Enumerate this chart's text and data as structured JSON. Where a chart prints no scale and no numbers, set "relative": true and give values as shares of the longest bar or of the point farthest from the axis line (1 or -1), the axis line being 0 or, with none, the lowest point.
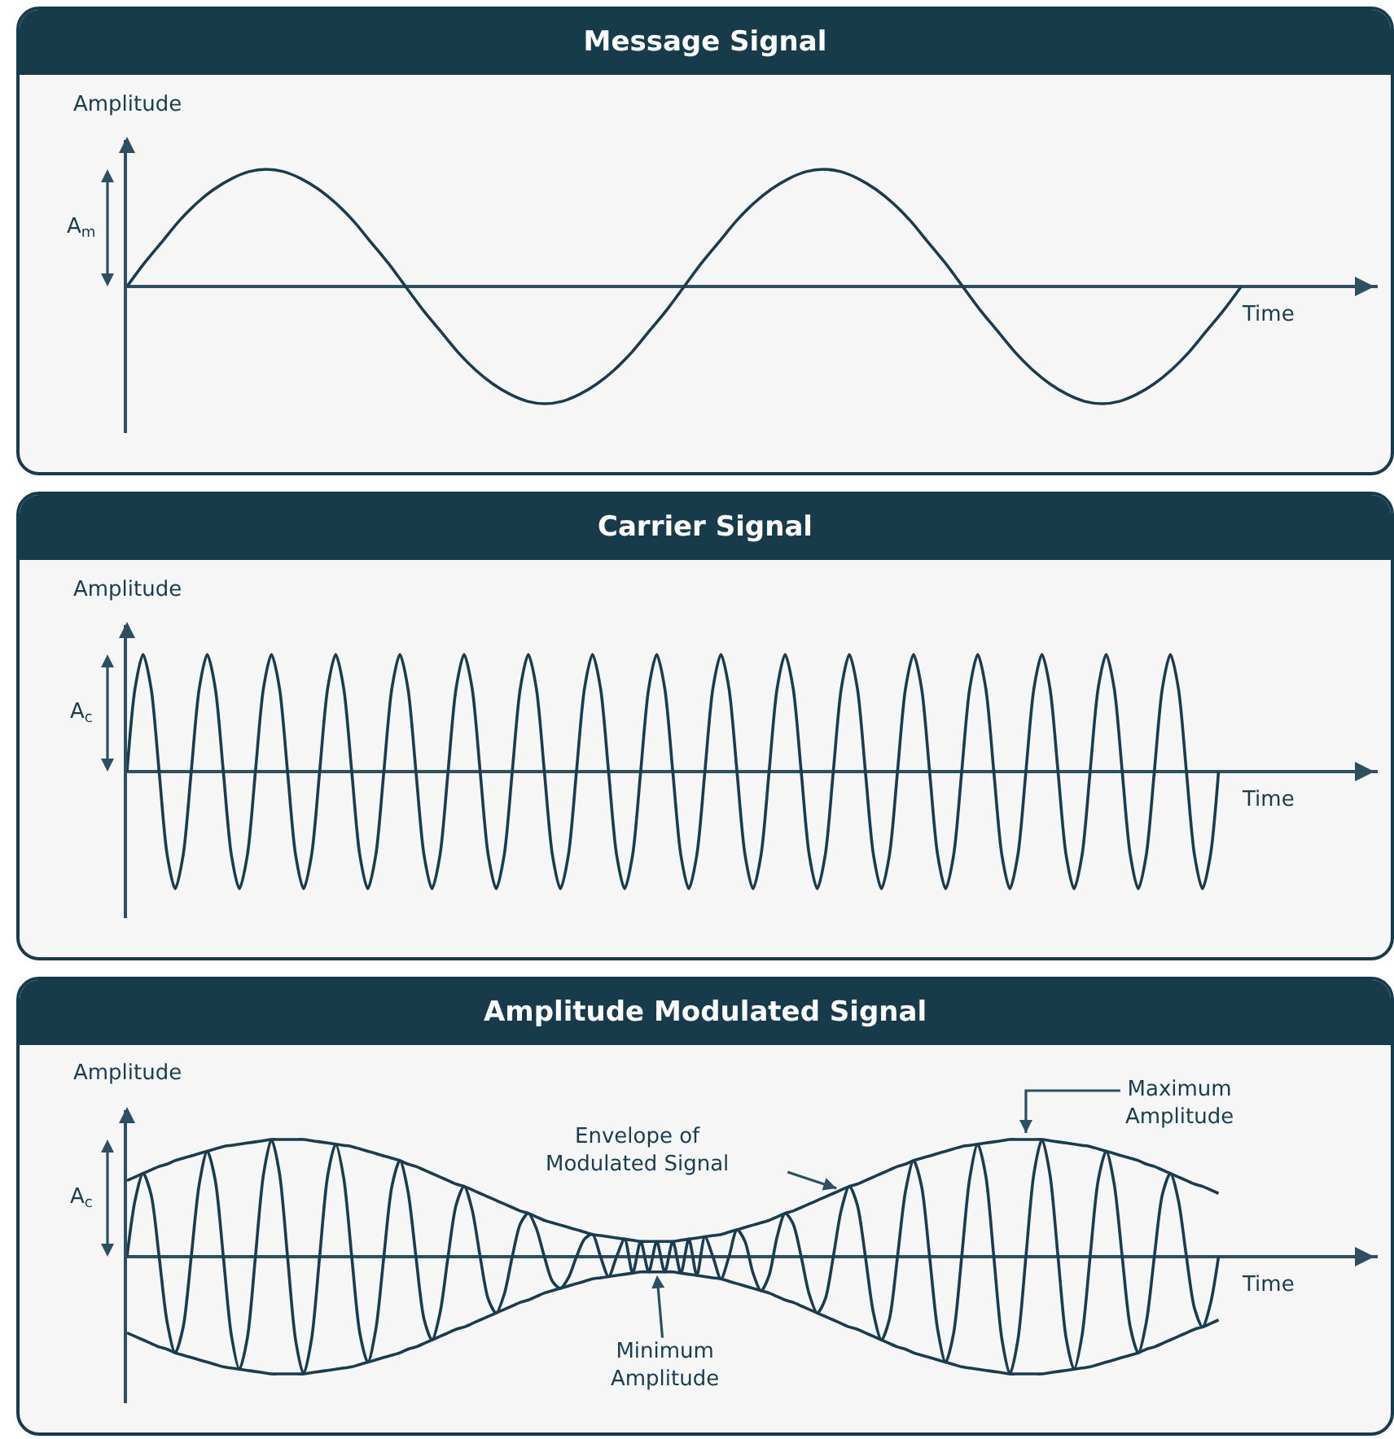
{
  "chart_data": [
    {
      "type": "line",
      "title": "Message Signal",
      "xlabel": "Time",
      "ylabel": "Amplitude",
      "relative": true,
      "annotations": [
        "A$_{m}$"
      ],
      "categories": [
        null,
        null,
        null,
        null,
        null,
        null,
        null,
        null,
        null,
        null,
        null,
        null,
        null,
        null,
        null,
        null,
        null,
        null,
        null,
        null,
        null,
        null,
        null,
        null,
        null,
        null,
        null,
        null,
        null,
        null,
        null,
        null,
        null,
        null,
        null,
        null,
        null,
        null,
        null,
        null,
        null,
        null,
        null,
        null,
        null,
        null,
        null,
        null,
        null,
        null,
        null,
        null,
        null,
        null,
        null,
        null,
        null,
        null,
        null,
        null,
        null,
        null,
        null,
        null,
        null
      ],
      "series": [
        {
          "color": "#1b3c4e",
          "values": [
            0,
            0.2,
            0.38,
            0.56,
            0.71,
            0.83,
            0.92,
            0.98,
            1,
            0.98,
            0.92,
            0.83,
            0.71,
            0.56,
            0.38,
            0.2,
            0,
            -0.2,
            -0.38,
            -0.56,
            -0.71,
            -0.83,
            -0.92,
            -0.98,
            -1,
            -0.98,
            -0.92,
            -0.83,
            -0.71,
            -0.56,
            -0.38,
            -0.2,
            0,
            0.2,
            0.38,
            0.56,
            0.71,
            0.83,
            0.92,
            0.98,
            1,
            0.98,
            0.92,
            0.83,
            0.71,
            0.56,
            0.38,
            0.2,
            0,
            -0.2,
            -0.38,
            -0.56,
            -0.71,
            -0.83,
            -0.92,
            -0.98,
            -1,
            -0.98,
            -0.92,
            -0.83,
            -0.71,
            -0.56,
            -0.38,
            -0.2,
            0
          ]
        }
      ]
    },
    {
      "type": "line",
      "title": "Carrier Signal",
      "xlabel": "Time",
      "ylabel": "Amplitude",
      "relative": true,
      "annotations": [
        "A$_{c}$"
      ],
      "categories": [
        null,
        null,
        null,
        null,
        null,
        null,
        null,
        null,
        null,
        null,
        null,
        null,
        null,
        null,
        null,
        null,
        null,
        null,
        null,
        null,
        null,
        null,
        null,
        null,
        null,
        null,
        null,
        null,
        null,
        null,
        null,
        null,
        null,
        null,
        null,
        null,
        null,
        null,
        null,
        null,
        null,
        null,
        null,
        null,
        null,
        null,
        null,
        null,
        null,
        null,
        null,
        null,
        null,
        null,
        null,
        null,
        null,
        null,
        null,
        null,
        null,
        null,
        null,
        null,
        null,
        null,
        null,
        null,
        null,
        null,
        null,
        null,
        null,
        null,
        null,
        null,
        null,
        null,
        null,
        null,
        null,
        null,
        null,
        null,
        null,
        null,
        null,
        null,
        null,
        null,
        null,
        null,
        null,
        null,
        null,
        null,
        null,
        null,
        null,
        null,
        null,
        null,
        null,
        null,
        null,
        null,
        null,
        null,
        null,
        null,
        null,
        null,
        null,
        null,
        null,
        null,
        null,
        null,
        null,
        null,
        null,
        null,
        null,
        null,
        null,
        null,
        null,
        null,
        null,
        null,
        null,
        null,
        null,
        null,
        null,
        null,
        null
      ],
      "series": [
        {
          "color": "#1b3c4e",
          "values": [
            0,
            0.71,
            1,
            0.71,
            0,
            -0.71,
            -1,
            -0.71,
            0,
            0.71,
            1,
            0.71,
            0,
            -0.71,
            -1,
            -0.71,
            0,
            0.71,
            1,
            0.71,
            0,
            -0.71,
            -1,
            -0.71,
            0,
            0.71,
            1,
            0.71,
            0,
            -0.71,
            -1,
            -0.71,
            0,
            0.71,
            1,
            0.71,
            0,
            -0.71,
            -1,
            -0.71,
            0,
            0.71,
            1,
            0.71,
            0,
            -0.71,
            -1,
            -0.71,
            0,
            0.71,
            1,
            0.71,
            0,
            -0.71,
            -1,
            -0.71,
            0,
            0.71,
            1,
            0.71,
            0,
            -0.71,
            -1,
            -0.71,
            0,
            0.71,
            1,
            0.71,
            0,
            -0.71,
            -1,
            -0.71,
            0,
            0.71,
            1,
            0.71,
            0,
            -0.71,
            -1,
            -0.71,
            0,
            0.71,
            1,
            0.71,
            0,
            -0.71,
            -1,
            -0.71,
            0,
            0.71,
            1,
            0.71,
            0,
            -0.71,
            -1,
            -0.71,
            0,
            0.71,
            1,
            0.71,
            0,
            -0.71,
            -1,
            -0.71,
            0,
            0.71,
            1,
            0.71,
            0,
            -0.71,
            -1,
            -0.71,
            0,
            0.71,
            1,
            0.71,
            0,
            -0.71,
            -1,
            -0.71,
            0,
            0.71,
            1,
            0.71,
            0,
            -0.71,
            -1,
            -0.71,
            0,
            0.71,
            1,
            0.71,
            0,
            -0.71,
            -1,
            -0.71,
            0
          ]
        }
      ]
    },
    {
      "type": "line",
      "title": "Amplitude Modulated Signal",
      "xlabel": "Time",
      "ylabel": "Amplitude",
      "relative": true,
      "annotations": [
        "A$_{c}$",
        "Envelope of\nModulated Signal",
        "Maximum\nAmplitude",
        {
          "text": "Minimum\nAmplitude",
          "y": -0.13
        }
      ],
      "categories": [
        null,
        null,
        null,
        null,
        null,
        null,
        null,
        null,
        null,
        null,
        null,
        null,
        null,
        null,
        null,
        null,
        null,
        null,
        null,
        null,
        null,
        null,
        null,
        null,
        null,
        null,
        null,
        null,
        null,
        null,
        null,
        null,
        null,
        null,
        null,
        null,
        null,
        null,
        null,
        null,
        null,
        null,
        null,
        null,
        null,
        null,
        null,
        null,
        null,
        null,
        null,
        null,
        null,
        null,
        null,
        null,
        null,
        null,
        null,
        null,
        null,
        null,
        null,
        null,
        null,
        null,
        null,
        null,
        null,
        null,
        null,
        null,
        null,
        null,
        null,
        null,
        null,
        null,
        null,
        null,
        null,
        null,
        null,
        null,
        null,
        null,
        null,
        null,
        null,
        null,
        null,
        null,
        null,
        null,
        null,
        null,
        null,
        null,
        null,
        null,
        null,
        null,
        null,
        null,
        null,
        null,
        null,
        null,
        null,
        null,
        null,
        null,
        null,
        null,
        null,
        null,
        null,
        null,
        null,
        null,
        null,
        null,
        null,
        null,
        null,
        null,
        null,
        null,
        null,
        null,
        null,
        null,
        null,
        null,
        null,
        null,
        null
      ],
      "series": [
        {
          "color": "#1b3c4e",
          "values": [
            0,
            0.48,
            0.71,
            0.53,
            0,
            -0.56,
            -0.82,
            -0.6,
            0,
            0.62,
            0.9,
            0.65,
            0,
            -0.67,
            -0.96,
            -0.69,
            0,
            0.7,
            1,
            0.71,
            0,
            -0.71,
            -1,
            -0.7,
            0,
            0.69,
            0.96,
            0.67,
            0,
            -0.65,
            -0.9,
            -0.62,
            0,
            0.6,
            0.82,
            0.56,
            0,
            -0.53,
            -0.71,
            -0.48,
            0,
            0.44,
            0.6,
            0.4,
            0,
            -0.36,
            -0.48,
            -0.32,
            0,
            0.28,
            0.37,
            0.24,
            0,
            -0.21,
            -0.27,
            -0.18,
            0,
            0.15,
            0.19,
            0,
            -0.17,
            0,
            0.15,
            -0.14,
            0.13,
            -0.13,
            0.13,
            -0.13,
            0.13,
            -0.14,
            0.15,
            -0.16,
            0.17,
            0,
            -0.19,
            0,
            0.23,
            0.13,
            -0.14,
            -0.29,
            -0.16,
            0.17,
            0.37,
            0.28,
            0,
            -0.32,
            -0.48,
            -0.36,
            0,
            0.4,
            0.6,
            0.44,
            0,
            -0.48,
            -0.71,
            -0.53,
            0,
            0.56,
            0.82,
            0.6,
            0,
            -0.62,
            -0.9,
            -0.65,
            0,
            0.67,
            0.96,
            0.69,
            0,
            -0.7,
            -1,
            -0.71,
            0,
            0.71,
            1,
            0.7,
            0,
            -0.69,
            -0.96,
            -0.67,
            0,
            0.65,
            0.9,
            0.62,
            0,
            -0.6,
            -0.82,
            -0.56,
            0,
            0.53,
            0.71,
            0.48,
            0,
            -0.44,
            -0.6,
            -0.4,
            0
          ]
        },
        {
          "color": "#1b3c4e",
          "values": [
            0.65,
            0.68,
            0.71,
            0.74,
            0.77,
            0.79,
            0.82,
            0.84,
            0.86,
            0.88,
            0.9,
            0.92,
            0.94,
            0.95,
            0.96,
            0.97,
            0.98,
            0.99,
            1,
            1,
            1,
            1,
            1,
            0.99,
            0.98,
            0.97,
            0.96,
            0.95,
            0.94,
            0.92,
            0.9,
            0.88,
            0.86,
            0.84,
            0.82,
            0.79,
            0.77,
            0.74,
            0.71,
            0.68,
            0.65,
            0.62,
            0.6,
            0.57,
            0.54,
            0.51,
            0.48,
            0.45,
            0.42,
            0.39,
            0.37,
            0.34,
            0.31,
            0.29,
            0.27,
            0.25,
            0.23,
            0.21,
            0.19,
            0.18,
            0.17,
            0.16,
            0.15,
            0.14,
            0.13,
            0.13,
            0.13,
            0.13,
            0.13,
            0.14,
            0.15,
            0.16,
            0.17,
            0.18,
            0.19,
            0.21,
            0.23,
            0.25,
            0.27,
            0.29,
            0.31,
            0.34,
            0.37,
            0.39,
            0.42,
            0.45,
            0.48,
            0.51,
            0.54,
            0.57,
            0.6,
            0.62,
            0.65,
            0.68,
            0.71,
            0.74,
            0.77,
            0.79,
            0.82,
            0.84,
            0.86,
            0.88,
            0.9,
            0.92,
            0.94,
            0.95,
            0.96,
            0.97,
            0.98,
            0.99,
            1,
            1,
            1,
            1,
            1,
            0.99,
            0.98,
            0.97,
            0.96,
            0.95,
            0.94,
            0.92,
            0.9,
            0.88,
            0.86,
            0.84,
            0.82,
            0.79,
            0.77,
            0.74,
            0.71,
            0.68,
            0.65,
            0.62,
            0.6,
            0.57,
            0.54
          ]
        },
        {
          "color": "#1b3c4e",
          "values": [
            -0.65,
            -0.68,
            -0.71,
            -0.74,
            -0.77,
            -0.79,
            -0.82,
            -0.84,
            -0.86,
            -0.88,
            -0.9,
            -0.92,
            -0.94,
            -0.95,
            -0.96,
            -0.97,
            -0.98,
            -0.99,
            -1,
            -1,
            -1,
            -1,
            -1,
            -0.99,
            -0.98,
            -0.97,
            -0.96,
            -0.95,
            -0.94,
            -0.92,
            -0.9,
            -0.88,
            -0.86,
            -0.84,
            -0.82,
            -0.79,
            -0.77,
            -0.74,
            -0.71,
            -0.68,
            -0.65,
            -0.62,
            -0.6,
            -0.57,
            -0.54,
            -0.51,
            -0.48,
            -0.45,
            -0.42,
            -0.39,
            -0.37,
            -0.34,
            -0.31,
            -0.29,
            -0.27,
            -0.25,
            -0.23,
            -0.21,
            -0.19,
            -0.18,
            -0.17,
            -0.16,
            -0.15,
            -0.14,
            -0.13,
            -0.13,
            -0.13,
            -0.13,
            -0.13,
            -0.14,
            -0.15,
            -0.16,
            -0.17,
            -0.18,
            -0.19,
            -0.21,
            -0.23,
            -0.25,
            -0.27,
            -0.29,
            -0.31,
            -0.34,
            -0.37,
            -0.39,
            -0.42,
            -0.45,
            -0.48,
            -0.51,
            -0.54,
            -0.57,
            -0.6,
            -0.62,
            -0.65,
            -0.68,
            -0.71,
            -0.74,
            -0.77,
            -0.79,
            -0.82,
            -0.84,
            -0.86,
            -0.88,
            -0.9,
            -0.92,
            -0.94,
            -0.95,
            -0.96,
            -0.97,
            -0.98,
            -0.99,
            -1,
            -1,
            -1,
            -1,
            -1,
            -0.99,
            -0.98,
            -0.97,
            -0.96,
            -0.95,
            -0.94,
            -0.92,
            -0.9,
            -0.88,
            -0.86,
            -0.84,
            -0.82,
            -0.79,
            -0.77,
            -0.74,
            -0.71,
            -0.68,
            -0.65,
            -0.62,
            -0.6,
            -0.57,
            -0.54
          ]
        }
      ]
    }
  ]
}
